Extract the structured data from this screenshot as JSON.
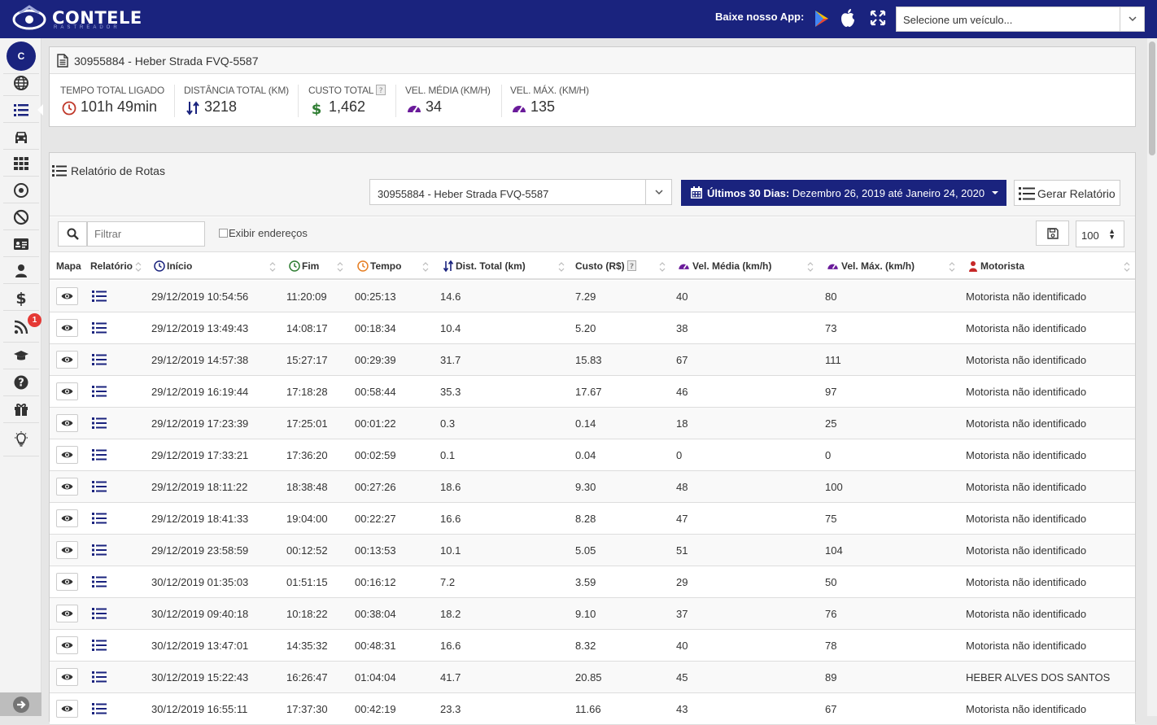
{
  "header": {
    "logo_text": "CONTELE",
    "logo_sub": "RASTREADOR",
    "app_label": "Baixe nosso App:",
    "vehicle_select_placeholder": "Selecione um veículo..."
  },
  "sidebar": {
    "avatar_letter": "C",
    "notification_count": "1",
    "items": [
      "globe-icon",
      "list-icon",
      "car-icon",
      "grid-icon",
      "target-icon",
      "ban-icon",
      "id-card-icon",
      "user-icon",
      "dollar-icon",
      "rss-icon",
      "graduation-cap-icon",
      "question-icon",
      "gift-icon",
      "lightbulb-icon"
    ]
  },
  "summary": {
    "title": "30955884 - Heber Strada FVQ-5587",
    "stats": [
      {
        "label": "TEMPO TOTAL LIGADO",
        "value": "101h 49min"
      },
      {
        "label": "DISTÂNCIA TOTAL (KM)",
        "value": "3218"
      },
      {
        "label": "CUSTO TOTAL",
        "value": "1,462"
      },
      {
        "label": "VEL. MÉDIA (KM/H)",
        "value": "34"
      },
      {
        "label": "VEL. MÁX. (KM/H)",
        "value": "135"
      }
    ]
  },
  "report": {
    "title": "Relatório de Rotas",
    "route_select": "30955884 - Heber Strada FVQ-5587",
    "date_bold": "Últimos 30 Dias:",
    "date_range": " Dezembro 26, 2019 até Janeiro 24, 2020",
    "generate_label": "Gerar Relatório",
    "filter_placeholder": "Filtrar",
    "show_addresses_label": "Exibir endereços",
    "page_size": "100"
  },
  "table": {
    "columns": [
      "Mapa",
      "Relatório",
      "Início",
      "Fim",
      "Tempo",
      "Dist. Total (km)",
      "Custo (R$)",
      "Vel. Média (km/h)",
      "Vel. Máx. (km/h)",
      "Motorista"
    ],
    "rows": [
      [
        "29/12/2019 10:54:56",
        "11:20:09",
        "00:25:13",
        "14.6",
        "7.29",
        "40",
        "80",
        "Motorista não identificado"
      ],
      [
        "29/12/2019 13:49:43",
        "14:08:17",
        "00:18:34",
        "10.4",
        "5.20",
        "38",
        "73",
        "Motorista não identificado"
      ],
      [
        "29/12/2019 14:57:38",
        "15:27:17",
        "00:29:39",
        "31.7",
        "15.83",
        "67",
        "111",
        "Motorista não identificado"
      ],
      [
        "29/12/2019 16:19:44",
        "17:18:28",
        "00:58:44",
        "35.3",
        "17.67",
        "46",
        "97",
        "Motorista não identificado"
      ],
      [
        "29/12/2019 17:23:39",
        "17:25:01",
        "00:01:22",
        "0.3",
        "0.14",
        "18",
        "25",
        "Motorista não identificado"
      ],
      [
        "29/12/2019 17:33:21",
        "17:36:20",
        "00:02:59",
        "0.1",
        "0.04",
        "0",
        "0",
        "Motorista não identificado"
      ],
      [
        "29/12/2019 18:11:22",
        "18:38:48",
        "00:27:26",
        "18.6",
        "9.30",
        "48",
        "100",
        "Motorista não identificado"
      ],
      [
        "29/12/2019 18:41:33",
        "19:04:00",
        "00:22:27",
        "16.6",
        "8.28",
        "47",
        "75",
        "Motorista não identificado"
      ],
      [
        "29/12/2019 23:58:59",
        "00:12:52",
        "00:13:53",
        "10.1",
        "5.05",
        "51",
        "104",
        "Motorista não identificado"
      ],
      [
        "30/12/2019 01:35:03",
        "01:51:15",
        "00:16:12",
        "7.2",
        "3.59",
        "29",
        "50",
        "Motorista não identificado"
      ],
      [
        "30/12/2019 09:40:18",
        "10:18:22",
        "00:38:04",
        "18.2",
        "9.10",
        "37",
        "76",
        "Motorista não identificado"
      ],
      [
        "30/12/2019 13:47:01",
        "14:35:32",
        "00:48:31",
        "16.6",
        "8.32",
        "40",
        "78",
        "Motorista não identificado"
      ],
      [
        "30/12/2019 15:22:43",
        "16:26:47",
        "01:04:04",
        "41.7",
        "20.85",
        "45",
        "89",
        "HEBER ALVES DOS SANTOS"
      ],
      [
        "30/12/2019 16:55:11",
        "17:37:30",
        "00:42:19",
        "23.3",
        "11.66",
        "43",
        "67",
        "Motorista não identificado"
      ]
    ]
  },
  "colors": {
    "brand": "#1a237e",
    "clock": "#c0392b",
    "dollar": "#2e7d32",
    "gauge": "#6a1b9a",
    "distance": "#1a237e"
  }
}
